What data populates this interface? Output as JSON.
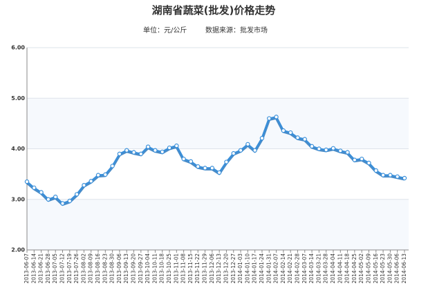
{
  "chart_data": {
    "type": "line",
    "title": "湖南省蔬菜(批发)价格走势",
    "unit_label": "单位：元/公斤",
    "source_label": "数据来源：批发市场",
    "categories": [
      "2013-06-07",
      "2013-06-14",
      "2013-06-21",
      "2013-06-28",
      "2013-07-05",
      "2013-07-12",
      "2013-07-19",
      "2013-07-26",
      "2013-08-02",
      "2013-08-09",
      "2013-08-16",
      "2013-08-23",
      "2013-08-30",
      "2013-09-06",
      "2013-09-13",
      "2013-09-20",
      "2013-09-27",
      "2013-10-04",
      "2013-10-11",
      "2013-10-18",
      "2013-10-25",
      "2013-11-01",
      "2013-11-08",
      "2013-11-15",
      "2013-11-22",
      "2013-11-29",
      "2013-12-06",
      "2013-12-13",
      "2013-12-20",
      "2013-12-27",
      "2014-01-03",
      "2014-01-10",
      "2014-01-17",
      "2014-01-24",
      "2014-01-31",
      "2014-02-07",
      "2014-02-14",
      "2014-02-21",
      "2014-02-28",
      "2014-03-07",
      "2014-03-14",
      "2014-03-21",
      "2014-03-28",
      "2014-04-04",
      "2014-04-11",
      "2014-04-18",
      "2014-04-25",
      "2014-05-02",
      "2014-05-09",
      "2014-05-16",
      "2014-05-23",
      "2014-05-30",
      "2014-06-06",
      "2014-06-13"
    ],
    "values": [
      3.35,
      3.23,
      3.14,
      3.0,
      3.05,
      2.92,
      2.97,
      3.1,
      3.28,
      3.36,
      3.48,
      3.49,
      3.66,
      3.9,
      3.97,
      3.93,
      3.9,
      4.04,
      3.97,
      3.94,
      4.02,
      4.06,
      3.8,
      3.75,
      3.65,
      3.62,
      3.62,
      3.53,
      3.74,
      3.91,
      3.97,
      4.09,
      3.97,
      4.21,
      4.6,
      4.63,
      4.36,
      4.32,
      4.22,
      4.19,
      4.05,
      4.0,
      3.98,
      4.01,
      3.96,
      3.93,
      3.78,
      3.8,
      3.72,
      3.57,
      3.48,
      3.48,
      3.45,
      3.42
    ],
    "color": "#3a8fd9",
    "ylim": [
      2,
      6
    ],
    "yticks": [
      {
        "value": 2,
        "label": "2.00"
      },
      {
        "value": 3,
        "label": "3.00"
      },
      {
        "value": 4,
        "label": "4.00"
      },
      {
        "value": 5,
        "label": "5.00"
      },
      {
        "value": 6,
        "label": "6.00"
      }
    ],
    "grid": true
  }
}
